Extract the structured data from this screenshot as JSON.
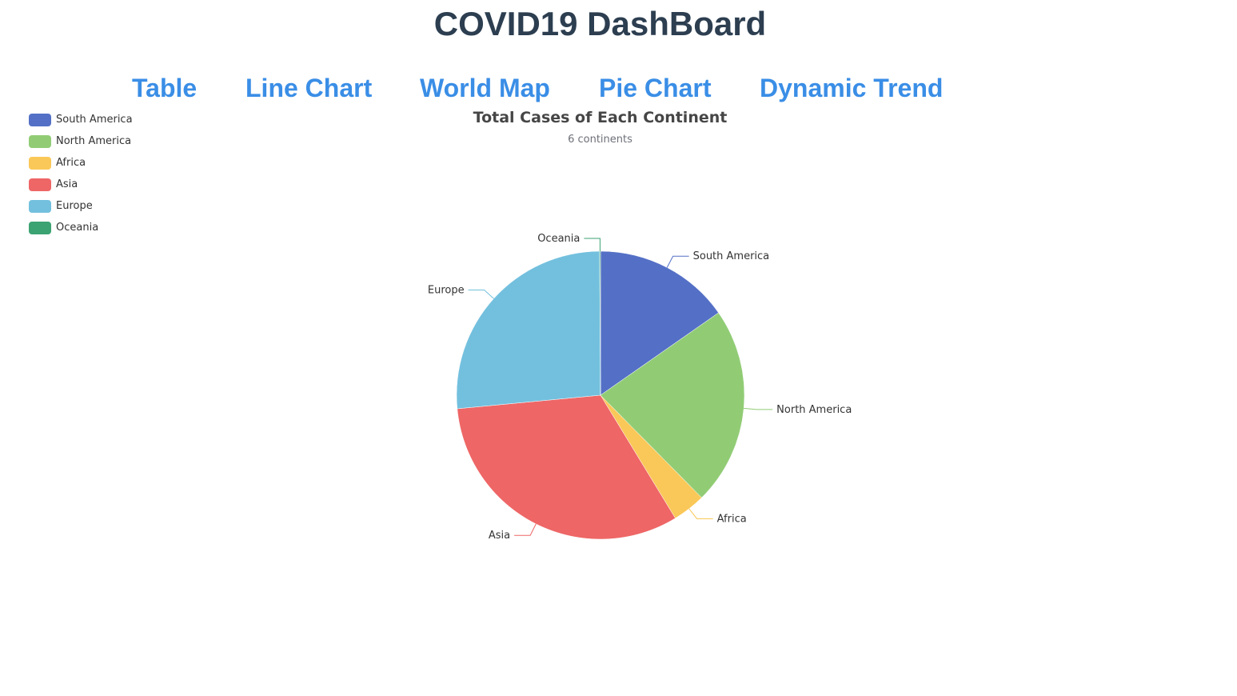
{
  "header": {
    "title": "COVID19 DashBoard"
  },
  "nav": {
    "items": [
      {
        "label": "Table"
      },
      {
        "label": "Line Chart"
      },
      {
        "label": "World Map"
      },
      {
        "label": "Pie Chart"
      },
      {
        "label": "Dynamic Trend"
      }
    ]
  },
  "chart_data": {
    "type": "pie",
    "title": "Total Cases of Each Continent",
    "subtitle": "6 continents",
    "legend_position": "top-left",
    "start_angle_deg": 90,
    "direction": "clockwise",
    "categories": [
      "South America",
      "North America",
      "Africa",
      "Asia",
      "Europe",
      "Oceania"
    ],
    "values": [
      15.3,
      22.3,
      3.7,
      32.2,
      26.4,
      0.1
    ],
    "colors": [
      "#5470c6",
      "#91cc75",
      "#fac858",
      "#ee6666",
      "#73c0de",
      "#3ba272"
    ]
  }
}
